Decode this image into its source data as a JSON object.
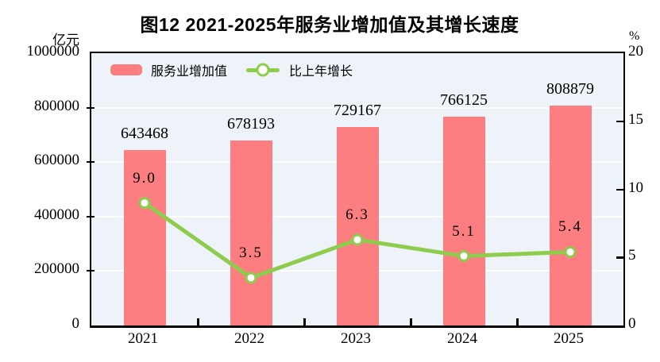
{
  "title": "图12  2021-2025年服务业增加值及其增长速度",
  "axes": {
    "left_unit": "亿元",
    "right_unit": "%",
    "left_ticks": [
      "1000000",
      "800000",
      "600000",
      "400000",
      "200000",
      "0"
    ],
    "right_ticks": [
      "20",
      "15",
      "10",
      "5",
      "0"
    ]
  },
  "legend": [
    {
      "label": "服务业增加值",
      "type": "bar"
    },
    {
      "label": "比上年增长",
      "type": "line"
    }
  ],
  "colors": {
    "bar": "#FC7E80",
    "line": "#8DCC4D",
    "marker_fill": "#FFFFFF",
    "plot_bg": "#EDF3F8",
    "grid": "#FFFFFF",
    "axis": "#000000"
  },
  "chart_data": {
    "type": "bar+line",
    "title": "图12  2021-2025年服务业增加值及其增长速度",
    "categories": [
      "2021",
      "2022",
      "2023",
      "2024",
      "2025"
    ],
    "series": [
      {
        "name": "服务业增加值",
        "type": "bar",
        "unit": "亿元",
        "values": [
          643468,
          678193,
          729167,
          766125,
          808879
        ],
        "labels": [
          "643468",
          "678193",
          "729167",
          "766125",
          "808879"
        ]
      },
      {
        "name": "比上年增长",
        "type": "line",
        "unit": "%",
        "values": [
          9.0,
          3.5,
          6.3,
          5.1,
          5.4
        ],
        "labels": [
          "9.0",
          "3.5",
          "6.3",
          "5.1",
          "5.4"
        ]
      }
    ],
    "left_axis": {
      "label": "亿元",
      "min": 0,
      "max": 1000000,
      "tick_step": 200000
    },
    "right_axis": {
      "label": "%",
      "min": 0,
      "max": 20,
      "tick_step": 5
    },
    "grid": true,
    "legend_position": "top-left-inside"
  }
}
